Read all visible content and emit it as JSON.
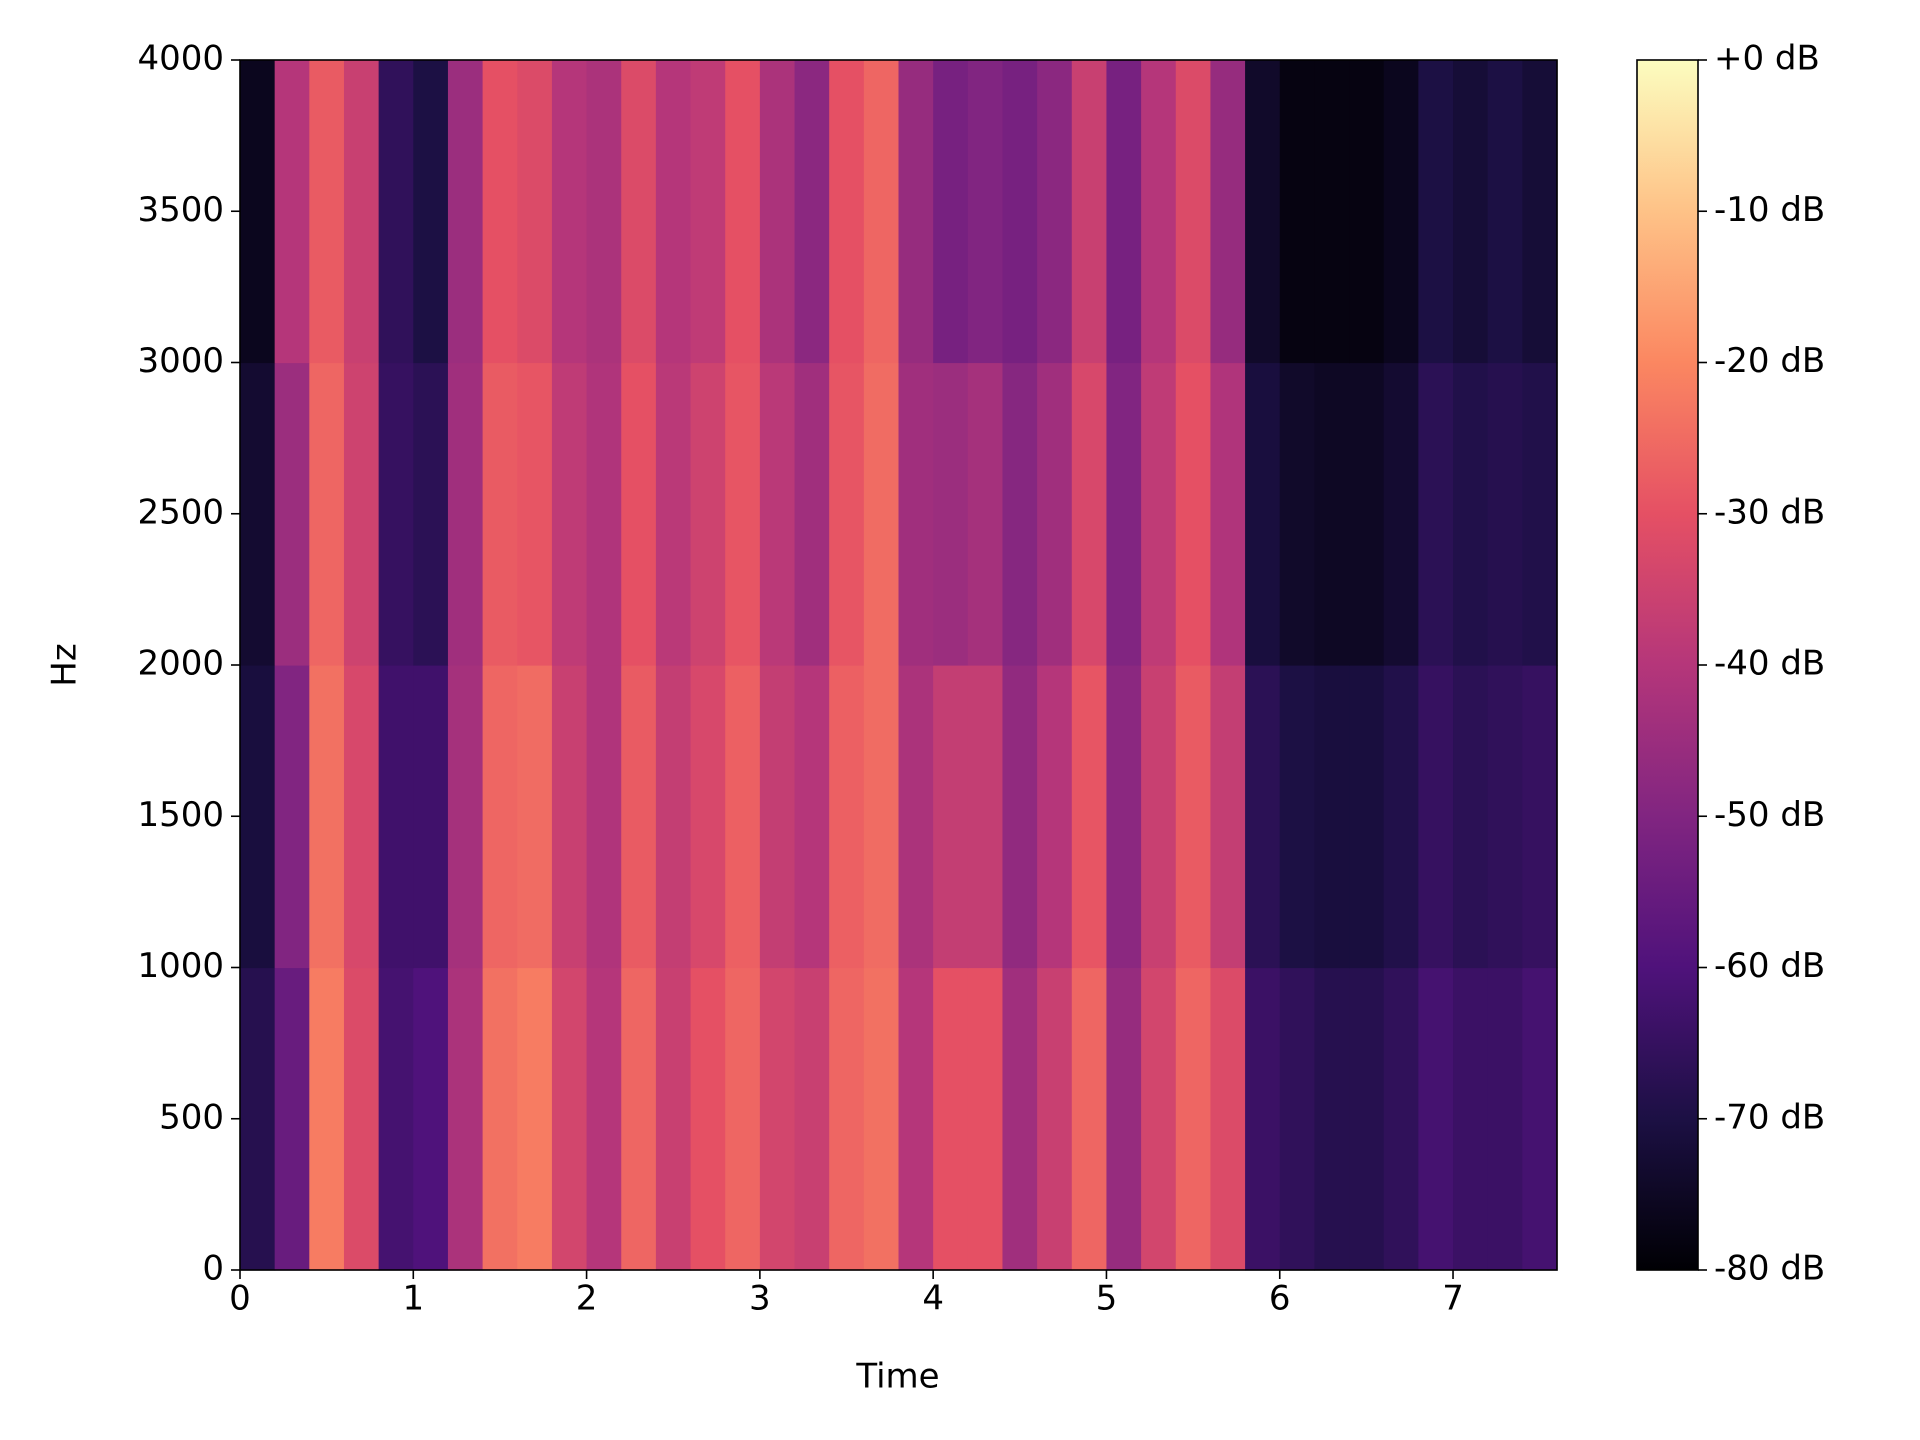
{
  "chart_data": {
    "type": "spectrogram",
    "xlabel": "Time",
    "ylabel": "Hz",
    "colormap": "magma",
    "xlim": [
      0,
      7.6
    ],
    "ylim": [
      0,
      4000
    ],
    "xticks": [
      0,
      1,
      2,
      3,
      4,
      5,
      6,
      7
    ],
    "yticks": [
      0,
      500,
      1000,
      1500,
      2000,
      2500,
      3000,
      3500,
      4000
    ],
    "x_bins": [
      0,
      0.2,
      0.4,
      0.6,
      0.8,
      1,
      1.2,
      1.4,
      1.6,
      1.8,
      2,
      2.2,
      2.4,
      2.6,
      2.8,
      3,
      3.2,
      3.4,
      3.6,
      3.8,
      4,
      4.2,
      4.4,
      4.6,
      4.8,
      5,
      5.2,
      5.4,
      5.6,
      5.8,
      6,
      6.2,
      6.4,
      6.6,
      6.8,
      7,
      7.2,
      7.4,
      7.6
    ],
    "y_bins": [
      0,
      1000,
      2000,
      3000,
      4000
    ],
    "values": [
      [
        -68,
        -55,
        -22,
        -32,
        -62,
        -60,
        -42,
        -24,
        -22,
        -34,
        -40,
        -26,
        -36,
        -30,
        -26,
        -34,
        -36,
        -26,
        -24,
        -40,
        -30,
        -30,
        -44,
        -36,
        -26,
        -46,
        -34,
        -26,
        -32,
        -64,
        -66,
        -68,
        -68,
        -66,
        -62,
        -64,
        -64,
        -62
      ],
      [
        -71,
        -50,
        -24,
        -33,
        -63,
        -63,
        -43,
        -26,
        -25,
        -36,
        -41,
        -28,
        -37,
        -33,
        -27,
        -37,
        -40,
        -27,
        -25,
        -42,
        -37,
        -37,
        -47,
        -40,
        -29,
        -48,
        -36,
        -28,
        -37,
        -67,
        -70,
        -71,
        -71,
        -69,
        -65,
        -67,
        -66,
        -65
      ],
      [
        -73,
        -45,
        -26,
        -35,
        -65,
        -67,
        -44,
        -28,
        -29,
        -38,
        -41,
        -30,
        -39,
        -35,
        -29,
        -39,
        -44,
        -29,
        -25,
        -44,
        -45,
        -43,
        -49,
        -44,
        -33,
        -50,
        -38,
        -30,
        -41,
        -71,
        -74,
        -75,
        -75,
        -73,
        -67,
        -69,
        -68,
        -69
      ],
      [
        -76,
        -40,
        -28,
        -36,
        -66,
        -70,
        -45,
        -30,
        -32,
        -40,
        -42,
        -32,
        -40,
        -38,
        -30,
        -42,
        -48,
        -30,
        -26,
        -46,
        -52,
        -50,
        -52,
        -48,
        -36,
        -52,
        -40,
        -32,
        -46,
        -74,
        -78,
        -78,
        -78,
        -76,
        -70,
        -72,
        -70,
        -72
      ]
    ],
    "colorbar": {
      "lim": [
        -80,
        0
      ],
      "ticks": [
        {
          "value": 0,
          "label": "+0 dB"
        },
        {
          "value": -10,
          "label": "-10 dB"
        },
        {
          "value": -20,
          "label": "-20 dB"
        },
        {
          "value": -30,
          "label": "-30 dB"
        },
        {
          "value": -40,
          "label": "-40 dB"
        },
        {
          "value": -50,
          "label": "-50 dB"
        },
        {
          "value": -60,
          "label": "-60 dB"
        },
        {
          "value": -70,
          "label": "-70 dB"
        },
        {
          "value": -80,
          "label": "-80 dB"
        }
      ]
    }
  }
}
